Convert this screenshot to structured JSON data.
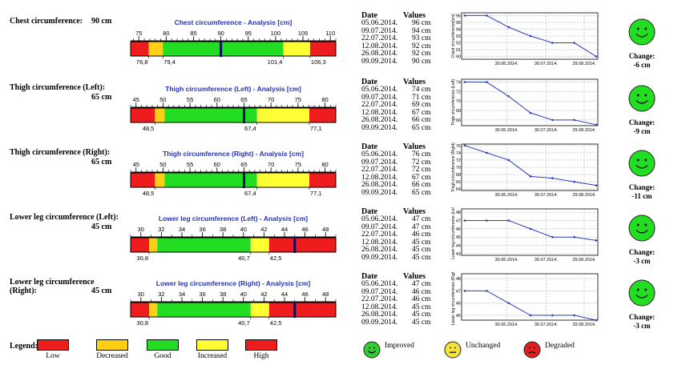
{
  "measurements": [
    {
      "label_parts": [
        "Chest circumference:",
        "90 cm"
      ],
      "layout": "inline",
      "gauge": {
        "title": "Chest circumference - Analysis [cm]",
        "min": 73.5,
        "max": 111,
        "ticks": [
          75,
          80,
          85,
          90,
          95,
          100,
          105,
          110
        ],
        "bands": [
          73.5,
          76.8,
          79.4,
          101.4,
          106.3,
          111
        ],
        "band_labels": [
          "76,8",
          "79,4",
          "101,4",
          "106,3"
        ],
        "marker": 90
      },
      "history": {
        "dates": [
          "05.06.2014.",
          "09.07.2014.",
          "22.07.2014.",
          "12.08.2014.",
          "26.08.2014.",
          "09.09.2014."
        ],
        "values": [
          "96 cm",
          "94 cm",
          "93 cm",
          "92 cm",
          "92 cm",
          "90 cm"
        ]
      },
      "mini_chart": {
        "ylabel": "Chest circumference[cm]",
        "yticks": [
          90,
          91,
          92,
          93,
          94,
          95,
          96
        ],
        "ylim": [
          89.6,
          96.4
        ],
        "xticks": [
          "30.06.2014.",
          "30.07.2014.",
          "29.08.2014."
        ],
        "points": [
          96,
          96,
          94.3,
          93,
          92,
          92,
          90
        ]
      },
      "change": {
        "label": "Change:",
        "value": "-6 cm",
        "status": "improved"
      }
    },
    {
      "label_parts": [
        "Thigh circumference (Left):",
        "65 cm"
      ],
      "layout": "stacked",
      "gauge": {
        "title": "Thigh circumference (Left) - Analysis [cm]",
        "min": 44,
        "max": 82,
        "ticks": [
          45,
          50,
          55,
          60,
          65,
          70,
          75,
          80
        ],
        "bands": [
          44,
          48.5,
          50.3,
          67.4,
          77.1,
          82
        ],
        "band_labels": [
          "48,5",
          "",
          "67,4",
          "77,1"
        ],
        "marker": 65
      },
      "history": {
        "dates": [
          "05.06.2014.",
          "09.07.2014.",
          "22.07.2014.",
          "12.08.2014.",
          "26.08.2014.",
          "09.09.2014."
        ],
        "values": [
          "74 cm",
          "71 cm",
          "69 cm",
          "67 cm",
          "66 cm",
          "65 cm"
        ]
      },
      "mini_chart": {
        "ylabel": "Thigh circumference (Left)",
        "yticks": [
          66,
          68,
          70,
          72,
          74
        ],
        "ylim": [
          64.8,
          74.6
        ],
        "xticks": [
          "30.06.2014.",
          "30.07.2014.",
          "29.08.2014."
        ],
        "points": [
          74,
          74,
          71,
          67.5,
          66,
          66,
          65
        ]
      },
      "change": {
        "label": "Change:",
        "value": "-9 cm",
        "status": "improved"
      }
    },
    {
      "label_parts": [
        "Thigh circumference (Right):",
        "65 cm"
      ],
      "layout": "stacked",
      "gauge": {
        "title": "Thigh circumference (Right) - Analysis [cm]",
        "min": 44,
        "max": 82,
        "ticks": [
          45,
          50,
          55,
          60,
          65,
          70,
          75,
          80
        ],
        "bands": [
          44,
          48.5,
          50.3,
          67.4,
          77.1,
          82
        ],
        "band_labels": [
          "48,5",
          "",
          "67,4",
          "77,1"
        ],
        "marker": 65
      },
      "history": {
        "dates": [
          "05.06.2014.",
          "09.07.2014.",
          "22.07.2014.",
          "12.08.2014.",
          "26.08.2014.",
          "09.09.2014."
        ],
        "values": [
          "76 cm",
          "72 cm",
          "72 cm",
          "67 cm",
          "66 cm",
          "65 cm"
        ]
      },
      "mini_chart": {
        "ylabel": "Thigh circumference (Right)",
        "yticks": [
          64,
          66,
          68,
          70,
          72,
          74,
          76
        ],
        "ylim": [
          63.6,
          76.4
        ],
        "xticks": [
          "30.06.2014.",
          "30.07.2014.",
          "29.08.2014."
        ],
        "points": [
          76,
          74,
          72,
          67.5,
          67,
          66,
          65
        ]
      },
      "change": {
        "label": "Change:",
        "value": "-11 cm",
        "status": "improved"
      }
    },
    {
      "label_parts": [
        "Lower leg circumference (Left):",
        "45 cm"
      ],
      "layout": "stacked",
      "gauge": {
        "title": "Lower leg circumference (Left) - Analysis [cm]",
        "min": 29,
        "max": 49,
        "ticks": [
          30,
          32,
          34,
          36,
          38,
          40,
          42,
          44,
          46,
          48
        ],
        "bands": [
          29,
          30.8,
          31.6,
          40.7,
          42.5,
          49
        ],
        "band_labels": [
          "30,8",
          "",
          "40,7",
          "42,5"
        ],
        "marker": 45
      },
      "history": {
        "dates": [
          "05.06.2014.",
          "09.07.2014.",
          "22.07.2014.",
          "12.08.2014.",
          "26.08.2014.",
          "09.09.2014."
        ],
        "values": [
          "47 cm",
          "47 cm",
          "46 cm",
          "45 cm",
          "45 cm",
          "45 cm"
        ]
      },
      "mini_chart": {
        "ylabel": "Lower leg circumference (Left)",
        "yticks": [
          43,
          44,
          45,
          46,
          47,
          48
        ],
        "ylim": [
          42.8,
          48.4
        ],
        "xticks": [
          "30.06.2014.",
          "30.07.2014.",
          "29.08.2014."
        ],
        "points": [
          47,
          47,
          47,
          46,
          45,
          45,
          44.6
        ]
      },
      "change": {
        "label": "Change:",
        "value": "-3 cm",
        "status": "improved"
      }
    },
    {
      "label_parts": [
        "Lower leg circumference",
        "(Right):",
        "45 cm"
      ],
      "layout": "wrapped",
      "gauge": {
        "title": "Lower leg circumference (Right) - Analysis [cm]",
        "min": 29,
        "max": 49,
        "ticks": [
          30,
          32,
          34,
          36,
          38,
          40,
          42,
          44,
          46,
          48
        ],
        "bands": [
          29,
          30.8,
          31.6,
          40.7,
          42.5,
          49
        ],
        "band_labels": [
          "30,8",
          "",
          "40,7",
          "42,5"
        ],
        "marker": 45
      },
      "history": {
        "dates": [
          "05.06.2014.",
          "09.07.2014.",
          "22.07.2014.",
          "12.08.2014.",
          "26.08.2014.",
          "09.09.2014."
        ],
        "values": [
          "47 cm",
          "46 cm",
          "46 cm",
          "45 cm",
          "45 cm",
          "45 cm"
        ]
      },
      "mini_chart": {
        "ylabel": "Lower leg circumference (Right)",
        "yticks": [
          45,
          46,
          47,
          48
        ],
        "ylim": [
          44.6,
          48.4
        ],
        "xticks": [
          "30.06.2014.",
          "30.07.2014.",
          "29.08.2014."
        ],
        "points": [
          47,
          47,
          46,
          45,
          45,
          45,
          44.6
        ]
      },
      "change": {
        "label": "Change:",
        "value": "-3 cm",
        "status": "improved"
      }
    }
  ],
  "history_headers": {
    "date": "Date",
    "values": "Values"
  },
  "legend": {
    "title": "Legend:",
    "items": [
      {
        "label": "Low",
        "color": "#ee1c1c"
      },
      {
        "label": "Decreased",
        "color": "#fdd017"
      },
      {
        "label": "Good",
        "color": "#22dd22"
      },
      {
        "label": "Increased",
        "color": "#ffff33"
      },
      {
        "label": "High",
        "color": "#ee1c1c"
      }
    ],
    "status_items": [
      {
        "label": "Improved",
        "mood": "happy",
        "color": "#33cc33"
      },
      {
        "label": "Unchanged",
        "mood": "neutral",
        "color": "#f5e23a"
      },
      {
        "label": "Degraded",
        "mood": "sad",
        "color": "#e02020"
      }
    ]
  },
  "colors": {
    "low": "#ee1c1c",
    "decreased": "#fdd017",
    "good": "#22dd22",
    "increased": "#ffff33",
    "high": "#ee1c1c",
    "marker": "#0a0a60",
    "chart_line": "#2a3fbf",
    "title_blue": "#2233bb"
  }
}
